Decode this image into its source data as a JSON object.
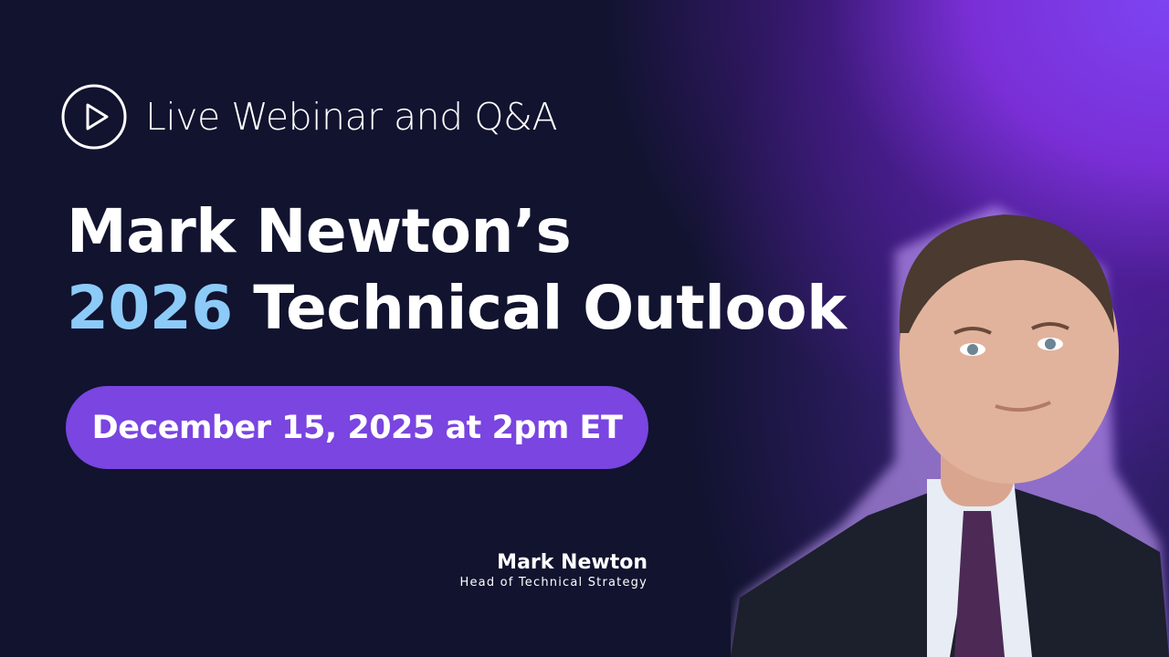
{
  "badge": {
    "icon": "play-circle-icon",
    "label": "Live Webinar and Q&A"
  },
  "title": {
    "line1": "Mark Newton’s",
    "year": "2026",
    "line2_rest": "Technical Outlook"
  },
  "date_pill": {
    "label": "December 15, 2025 at 2pm ET",
    "color": "#7a45e0"
  },
  "speaker": {
    "name": "Mark Newton",
    "role": "Head of Technical Strategy"
  },
  "colors": {
    "background": "#11132f",
    "accent_purple": "#7d44f2",
    "year_blue": "#8ccbf8"
  }
}
